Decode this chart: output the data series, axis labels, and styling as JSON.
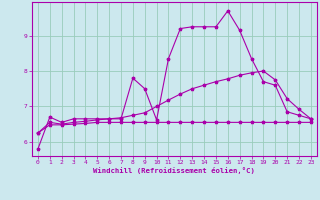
{
  "xlabel": "Windchill (Refroidissement éolien,°C)",
  "background_color": "#cce8ee",
  "grid_color": "#99ccbb",
  "line_color": "#aa00aa",
  "xlim": [
    -0.5,
    23.5
  ],
  "ylim": [
    5.6,
    9.95
  ],
  "yticks": [
    6,
    7,
    8,
    9
  ],
  "ytick_labels": [
    "6",
    "7",
    "8",
    "9"
  ],
  "xticks": [
    0,
    1,
    2,
    3,
    4,
    5,
    6,
    7,
    8,
    9,
    10,
    11,
    12,
    13,
    14,
    15,
    16,
    17,
    18,
    19,
    20,
    21,
    22,
    23
  ],
  "xtick_labels": [
    "0",
    "1",
    "2",
    "3",
    "4",
    "5",
    "6",
    "7",
    "8",
    "9",
    "10",
    "11",
    "12",
    "13",
    "14",
    "15",
    "16",
    "17",
    "18",
    "19",
    "20",
    "21",
    "22",
    "23"
  ],
  "line1_x": [
    0,
    1,
    2,
    3,
    4,
    5,
    6,
    7,
    8,
    9,
    10,
    11,
    12,
    13,
    14,
    15,
    16,
    17,
    18,
    19,
    20,
    21,
    22,
    23
  ],
  "line1_y": [
    5.8,
    6.7,
    6.55,
    6.65,
    6.65,
    6.65,
    6.65,
    6.65,
    7.8,
    7.5,
    6.62,
    8.35,
    9.2,
    9.25,
    9.25,
    9.25,
    9.7,
    9.15,
    8.35,
    7.7,
    7.6,
    6.85,
    6.75,
    6.65
  ],
  "line2_x": [
    0,
    1,
    2,
    3,
    4,
    5,
    6,
    7,
    8,
    9,
    10,
    11,
    12,
    13,
    14,
    15,
    16,
    17,
    18,
    19,
    20,
    21,
    22,
    23
  ],
  "line2_y": [
    6.25,
    6.48,
    6.48,
    6.5,
    6.52,
    6.55,
    6.55,
    6.55,
    6.55,
    6.55,
    6.55,
    6.55,
    6.55,
    6.55,
    6.55,
    6.55,
    6.55,
    6.55,
    6.55,
    6.55,
    6.55,
    6.55,
    6.55,
    6.55
  ],
  "line3_x": [
    0,
    1,
    2,
    3,
    4,
    5,
    6,
    7,
    8,
    9,
    10,
    11,
    12,
    13,
    14,
    15,
    16,
    17,
    18,
    19,
    20,
    21,
    22,
    23
  ],
  "line3_y": [
    6.25,
    6.55,
    6.5,
    6.55,
    6.58,
    6.62,
    6.65,
    6.68,
    6.75,
    6.82,
    7.0,
    7.18,
    7.35,
    7.5,
    7.6,
    7.7,
    7.78,
    7.88,
    7.95,
    8.0,
    7.75,
    7.22,
    6.92,
    6.65
  ]
}
